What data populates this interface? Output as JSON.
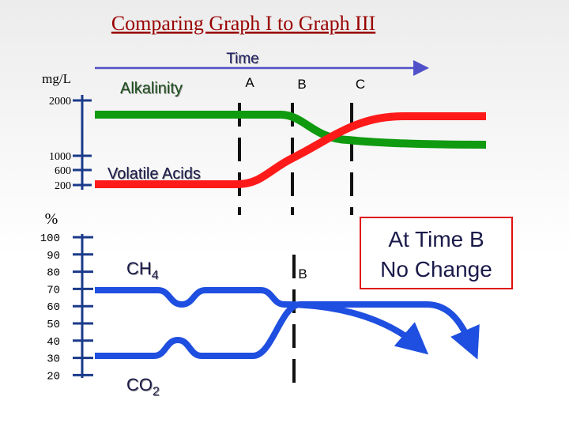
{
  "title": "Comparing Graph I to Graph III",
  "time_axis": {
    "label": "Time",
    "points": [
      "A",
      "B",
      "C"
    ]
  },
  "concentration_axis": {
    "unit": "mg/L",
    "ticks": [
      "2000",
      "1000",
      "600",
      "200"
    ]
  },
  "percent_axis": {
    "unit": "%",
    "ticks": [
      "100",
      "90",
      "80",
      "70",
      "60",
      "50",
      "40",
      "30",
      "20"
    ]
  },
  "curves": {
    "alkalinity": "Alkalinity",
    "volatile_acids": "Volatile Acids",
    "ch4": {
      "name": "CH",
      "sub": "4"
    },
    "co2": {
      "name": "CO",
      "sub": "2"
    }
  },
  "lower_marker": "B",
  "callout": [
    "At Time B",
    "No Change"
  ]
}
